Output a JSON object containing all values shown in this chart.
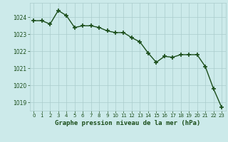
{
  "x": [
    0,
    1,
    2,
    3,
    4,
    5,
    6,
    7,
    8,
    9,
    10,
    11,
    12,
    13,
    14,
    15,
    16,
    17,
    18,
    19,
    20,
    21,
    22,
    23
  ],
  "y": [
    1023.8,
    1023.8,
    1023.6,
    1024.4,
    1024.1,
    1023.4,
    1023.5,
    1023.5,
    1023.4,
    1023.2,
    1023.1,
    1023.1,
    1022.8,
    1022.55,
    1021.9,
    1021.35,
    1021.7,
    1021.65,
    1021.8,
    1021.8,
    1021.8,
    1021.1,
    1019.8,
    1018.7
  ],
  "line_color": "#1a4d1a",
  "marker_color": "#1a4d1a",
  "bg_color": "#cceaea",
  "grid_color": "#aacccc",
  "xlabel": "Graphe pression niveau de la mer (hPa)",
  "xlabel_color": "#1a4d1a",
  "tick_color": "#1a4d1a",
  "ylim": [
    1018.5,
    1024.85
  ],
  "yticks": [
    1019,
    1020,
    1021,
    1022,
    1023,
    1024
  ],
  "xticks": [
    0,
    1,
    2,
    3,
    4,
    5,
    6,
    7,
    8,
    9,
    10,
    11,
    12,
    13,
    14,
    15,
    16,
    17,
    18,
    19,
    20,
    21,
    22,
    23
  ],
  "marker_size": 4,
  "line_width": 1.0
}
